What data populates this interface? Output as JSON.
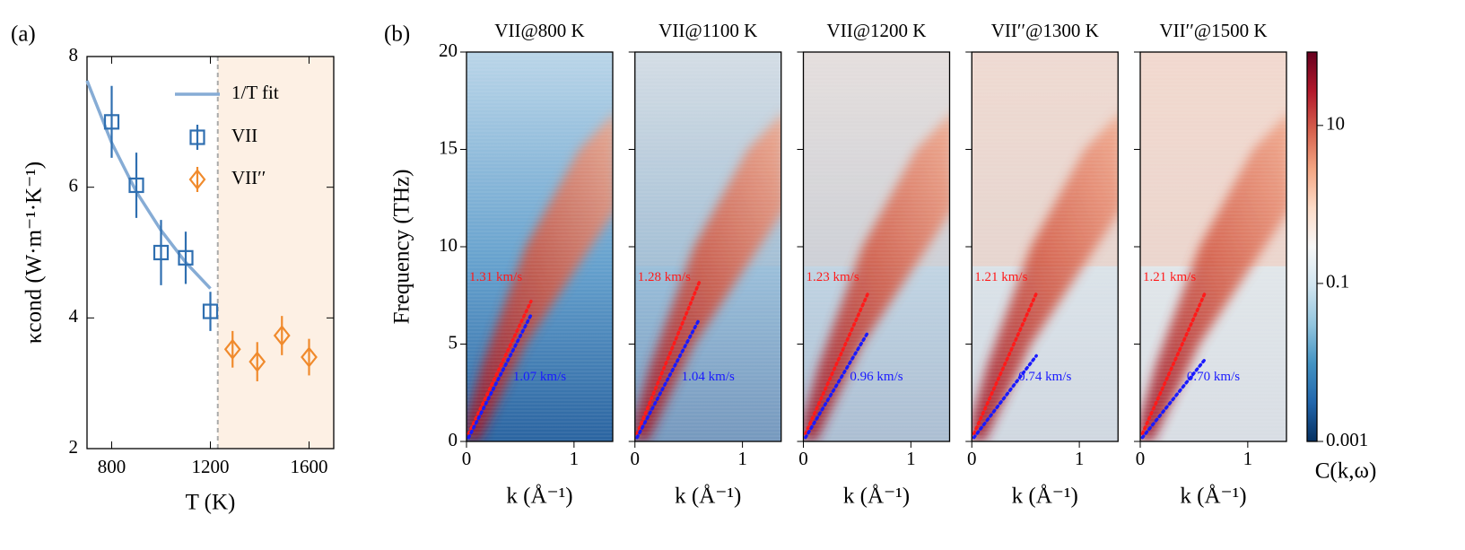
{
  "chart_data": [
    {
      "type": "errorbar",
      "panel": "(a)",
      "xlabel": "T (K)",
      "ylabel": "κcond (W·m⁻¹·K⁻¹)",
      "xlim": [
        700,
        1700
      ],
      "ylim": [
        2,
        8
      ],
      "xticks": [
        800,
        1200,
        1600
      ],
      "yticks": [
        2,
        4,
        6,
        8
      ],
      "shade_from": 1230,
      "shade_color": "#fdf0e4",
      "series": [
        {
          "name": "1/T fit",
          "kind": "line",
          "color": "#86acd5",
          "x": [
            700,
            800,
            900,
            1000,
            1100,
            1200
          ],
          "values": [
            7.63,
            6.68,
            5.93,
            5.34,
            4.85,
            4.45
          ]
        },
        {
          "name": "VII",
          "kind": "square",
          "color": "#2f6fb0",
          "x": [
            800,
            900,
            1000,
            1100,
            1200
          ],
          "values": [
            7.0,
            6.03,
            5.0,
            4.92,
            4.1
          ],
          "errors": [
            0.55,
            0.5,
            0.5,
            0.4,
            0.3
          ]
        },
        {
          "name": "VII′′",
          "kind": "diamond",
          "color": "#f08a2c",
          "x": [
            1290,
            1390,
            1490,
            1600
          ],
          "values": [
            3.52,
            3.33,
            3.73,
            3.4
          ],
          "errors": [
            0.28,
            0.3,
            0.3,
            0.28
          ]
        }
      ]
    },
    {
      "type": "heatmap",
      "panel": "(b)",
      "title": "VII@800 K",
      "xlabel": "k (Å⁻¹)",
      "ylabel": "Frequency (THz)",
      "show_ytick_labels": true,
      "xlim": [
        0,
        1.36
      ],
      "ylim": [
        0,
        20
      ],
      "xticks": [
        0,
        1
      ],
      "yticks": [
        0,
        5,
        10,
        15,
        20
      ],
      "series": [
        {
          "color": "#ff1a1a",
          "x": [
            0.02,
            0.6
          ],
          "values": [
            0.4,
            7.2
          ],
          "label": "1.31 km/s"
        },
        {
          "color": "#1a1aff",
          "x": [
            0.02,
            0.6
          ],
          "values": [
            0.2,
            6.5
          ],
          "label": "1.07 km/s"
        }
      ]
    },
    {
      "type": "heatmap",
      "title": "VII@1100 K",
      "xlabel": "k (Å⁻¹)",
      "show_ytick_labels": false,
      "xlim": [
        0,
        1.36
      ],
      "ylim": [
        0,
        20
      ],
      "xticks": [
        0,
        1
      ],
      "yticks": [
        0,
        5,
        10,
        15,
        20
      ],
      "series": [
        {
          "color": "#ff1a1a",
          "x": [
            0.02,
            0.6
          ],
          "values": [
            0.4,
            8.2
          ],
          "label": "1.28 km/s"
        },
        {
          "color": "#1a1aff",
          "x": [
            0.02,
            0.6
          ],
          "values": [
            0.2,
            6.3
          ],
          "label": "1.04 km/s"
        }
      ]
    },
    {
      "type": "heatmap",
      "title": "VII@1200 K",
      "xlabel": "k (Å⁻¹)",
      "show_ytick_labels": false,
      "xlim": [
        0,
        1.36
      ],
      "ylim": [
        0,
        20
      ],
      "xticks": [
        0,
        1
      ],
      "yticks": [
        0,
        5,
        10,
        15,
        20
      ],
      "series": [
        {
          "color": "#ff1a1a",
          "x": [
            0.02,
            0.6
          ],
          "values": [
            0.4,
            7.6
          ],
          "label": "1.23 km/s"
        },
        {
          "color": "#1a1aff",
          "x": [
            0.02,
            0.6
          ],
          "values": [
            0.2,
            5.6
          ],
          "label": "0.96 km/s"
        }
      ]
    },
    {
      "type": "heatmap",
      "title": "VII′′@1300 K",
      "xlabel": "k (Å⁻¹)",
      "show_ytick_labels": false,
      "xlim": [
        0,
        1.36
      ],
      "ylim": [
        0,
        20
      ],
      "xticks": [
        0,
        1
      ],
      "yticks": [
        0,
        5,
        10,
        15,
        20
      ],
      "series": [
        {
          "color": "#ff1a1a",
          "x": [
            0.02,
            0.6
          ],
          "values": [
            0.4,
            7.6
          ],
          "label": "1.21 km/s"
        },
        {
          "color": "#1a1aff",
          "x": [
            0.02,
            0.6
          ],
          "values": [
            0.2,
            4.4
          ],
          "label": "0.74 km/s"
        }
      ]
    },
    {
      "type": "heatmap",
      "title": "VII′′@1500 K",
      "xlabel": "k (Å⁻¹)",
      "show_ytick_labels": false,
      "xlim": [
        0,
        1.36
      ],
      "ylim": [
        0,
        20
      ],
      "xticks": [
        0,
        1
      ],
      "yticks": [
        0,
        5,
        10,
        15,
        20
      ],
      "series": [
        {
          "color": "#ff1a1a",
          "x": [
            0.02,
            0.6
          ],
          "values": [
            0.4,
            7.6
          ],
          "label": "1.21 km/s"
        },
        {
          "color": "#1a1aff",
          "x": [
            0.02,
            0.6
          ],
          "values": [
            0.2,
            4.2
          ],
          "label": "0.70 km/s"
        }
      ]
    },
    {
      "type": "colorbar",
      "label": "C(k,ω)",
      "scale": "log",
      "colormap": "RdBu_r",
      "clim": [
        0.001,
        85
      ],
      "ticks": [
        0.001,
        0.1,
        10
      ]
    }
  ]
}
